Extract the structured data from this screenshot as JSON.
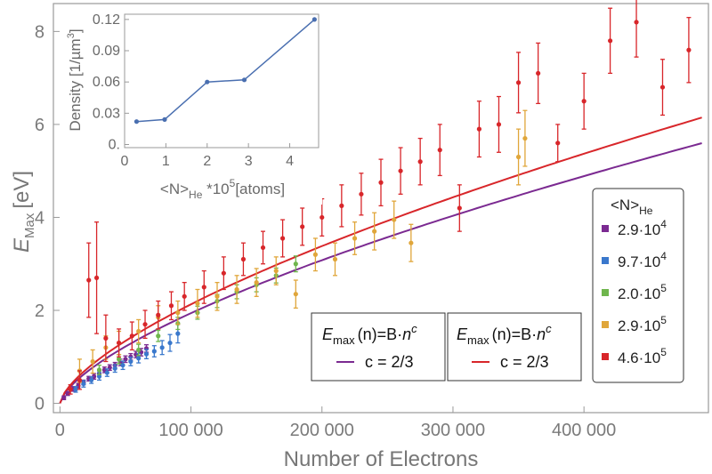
{
  "chart_data": [
    {
      "type": "scatter",
      "title": "",
      "xlabel": "Number of Electrons",
      "ylabel_main": "E",
      "ylabel_sub": "Max",
      "ylabel_unit": "[eV]",
      "xlim": [
        -5000,
        495000
      ],
      "ylim": [
        -0.2,
        8.6
      ],
      "xticks": [
        0,
        100000,
        200000,
        300000,
        400000
      ],
      "xtick_labels": [
        "0",
        "100 000",
        "200 000",
        "300 000",
        "400 000"
      ],
      "yticks": [
        0,
        2,
        4,
        6,
        8
      ],
      "ytick_labels": [
        "0",
        "2",
        "4",
        "6",
        "8"
      ],
      "grid": false,
      "legend": {
        "placement": "right",
        "title_main": "<N>",
        "title_sub": "He",
        "entries": [
          {
            "base": "2.9·10",
            "exp": "4",
            "color": "#7b2a91"
          },
          {
            "base": "9.7·10",
            "exp": "4",
            "color": "#3a78cc"
          },
          {
            "base": "2.0·10",
            "exp": "5",
            "color": "#6fb64d"
          },
          {
            "base": "2.9·10",
            "exp": "5",
            "color": "#e0a63a"
          },
          {
            "base": "4.6·10",
            "exp": "5",
            "color": "#d8262a"
          }
        ]
      },
      "fit_boxes": [
        {
          "label_main": "E",
          "label_sub": "max",
          "formula": "(n)=B·",
          "var": "n",
          "exp": "c",
          "curve": "c = 2/3",
          "color": "#7b2a91"
        },
        {
          "label_main": "E",
          "label_sub": "max",
          "formula": "(n)=B·",
          "var": "n",
          "exp": "c",
          "curve": "c = 2/3",
          "color": "#d8262a"
        }
      ],
      "fits": [
        {
          "color": "#7b2a91",
          "B": 0.0009,
          "exponent": 0.6667,
          "x": [
            0,
            490000
          ]
        },
        {
          "color": "#d8262a",
          "B": 0.0009886,
          "exponent": 0.6667,
          "x": [
            0,
            490000
          ]
        }
      ],
      "series": [
        {
          "name": "2.9·10^4",
          "color": "#7b2a91",
          "x": [
            3000,
            6000,
            10000,
            14000,
            18000,
            22000,
            26000,
            30000,
            34000,
            38000,
            42000,
            46000,
            50000,
            54000,
            58000,
            62000,
            66000
          ],
          "y": [
            0.12,
            0.21,
            0.31,
            0.38,
            0.45,
            0.53,
            0.58,
            0.64,
            0.72,
            0.77,
            0.82,
            0.88,
            0.95,
            1.0,
            1.05,
            1.1,
            1.18
          ],
          "err": [
            0.04,
            0.04,
            0.05,
            0.05,
            0.05,
            0.05,
            0.06,
            0.06,
            0.06,
            0.06,
            0.06,
            0.07,
            0.07,
            0.07,
            0.07,
            0.08,
            0.08
          ]
        },
        {
          "name": "9.7·10^4",
          "color": "#3a78cc",
          "x": [
            12000,
            18000,
            24000,
            30000,
            36000,
            42000,
            48000,
            54000,
            60000,
            66000,
            72000,
            78000,
            84000,
            90000
          ],
          "y": [
            0.3,
            0.42,
            0.5,
            0.58,
            0.66,
            0.75,
            0.82,
            0.9,
            0.97,
            1.06,
            1.12,
            1.2,
            1.3,
            1.5
          ],
          "err": [
            0.06,
            0.07,
            0.07,
            0.08,
            0.08,
            0.08,
            0.09,
            0.09,
            0.1,
            0.1,
            0.12,
            0.15,
            0.18,
            0.2
          ]
        },
        {
          "name": "2.0·10^5",
          "color": "#6fb64d",
          "x": [
            30000,
            45000,
            60000,
            75000,
            90000,
            105000,
            120000,
            135000,
            150000,
            165000,
            180000
          ],
          "y": [
            0.72,
            0.95,
            1.15,
            1.45,
            1.72,
            1.95,
            2.2,
            2.4,
            2.55,
            2.75,
            3.0
          ],
          "err": [
            0.1,
            0.1,
            0.12,
            0.12,
            0.13,
            0.14,
            0.14,
            0.15,
            0.15,
            0.16,
            0.17
          ]
        },
        {
          "name": "2.9·10^5",
          "color": "#e0a63a",
          "x": [
            15000,
            25000,
            35000,
            45000,
            60000,
            75000,
            90000,
            105000,
            120000,
            135000,
            150000,
            165000,
            180000,
            195000,
            210000,
            225000,
            240000,
            255000,
            268000,
            350000,
            355000
          ],
          "y": [
            0.7,
            0.9,
            1.2,
            1.3,
            1.55,
            1.85,
            1.95,
            2.15,
            2.3,
            2.45,
            2.6,
            2.85,
            2.35,
            3.2,
            3.1,
            3.55,
            3.7,
            3.95,
            3.45,
            5.3,
            5.7
          ],
          "err": [
            0.25,
            0.25,
            0.25,
            0.25,
            0.25,
            0.25,
            0.25,
            0.3,
            0.3,
            0.3,
            0.3,
            0.3,
            0.3,
            0.35,
            0.35,
            0.35,
            0.4,
            0.4,
            0.4,
            0.6,
            0.6
          ]
        },
        {
          "name": "4.6·10^5",
          "color": "#d8262a",
          "x": [
            8000,
            15000,
            22000,
            28000,
            35000,
            45000,
            55000,
            65000,
            75000,
            85000,
            95000,
            110000,
            125000,
            140000,
            155000,
            170000,
            185000,
            200000,
            215000,
            230000,
            245000,
            260000,
            275000,
            290000,
            305000,
            320000,
            335000,
            350000,
            365000,
            380000,
            400000,
            420000,
            440000,
            460000,
            480000
          ],
          "y": [
            0.3,
            0.5,
            2.65,
            2.7,
            1.4,
            1.3,
            1.45,
            1.7,
            1.9,
            2.1,
            2.3,
            2.5,
            2.8,
            3.1,
            3.35,
            3.55,
            3.8,
            4.0,
            4.25,
            4.5,
            4.75,
            5.0,
            5.2,
            5.45,
            4.2,
            5.9,
            6.0,
            6.9,
            7.1,
            5.6,
            6.5,
            7.8,
            8.2,
            6.8,
            7.6
          ],
          "err": [
            0.1,
            0.2,
            0.8,
            1.2,
            0.5,
            0.3,
            0.3,
            0.3,
            0.3,
            0.3,
            0.3,
            0.35,
            0.35,
            0.35,
            0.35,
            0.4,
            0.4,
            0.4,
            0.45,
            0.45,
            0.5,
            0.5,
            0.5,
            0.55,
            0.5,
            0.6,
            0.6,
            0.65,
            0.65,
            0.4,
            0.6,
            0.7,
            0.75,
            0.6,
            0.7
          ]
        }
      ]
    },
    {
      "type": "line",
      "title": "",
      "xlabel_pre": "<N>",
      "xlabel_sub": "He",
      "xlabel_post": " *10",
      "xlabel_sup": "5",
      "xlabel_end": "[atoms]",
      "ylabel_pre": "Density [1/µm",
      "ylabel_sup": "3",
      "ylabel_end": "]",
      "xlim": [
        0,
        4.7
      ],
      "ylim": [
        -0.003,
        0.125
      ],
      "xticks": [
        0,
        1,
        2,
        3,
        4
      ],
      "xtick_labels": [
        "0",
        "1",
        "2",
        "3",
        "4"
      ],
      "yticks": [
        0,
        0.03,
        0.06,
        0.09,
        0.12
      ],
      "ytick_labels": [
        "0.",
        "0.03",
        "0.06",
        "0.09",
        "0.12"
      ],
      "color": "#4a6fb0",
      "x": [
        0.29,
        0.97,
        2.0,
        2.9,
        4.6
      ],
      "y": [
        0.022,
        0.024,
        0.06,
        0.062,
        0.12
      ]
    }
  ]
}
